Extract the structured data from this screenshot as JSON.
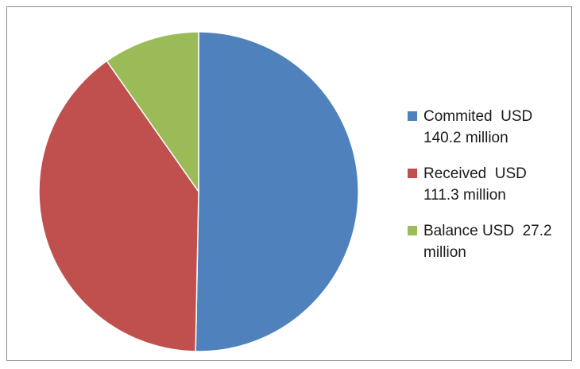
{
  "chart_data": {
    "type": "pie",
    "slices": [
      {
        "label_lines": [
          "Commited  USD",
          "140.2 million"
        ],
        "value": 140.2,
        "color": "#4f81bd"
      },
      {
        "label_lines": [
          "Received  USD",
          "111.3 million"
        ],
        "value": 111.3,
        "color": "#c0504d"
      },
      {
        "label_lines": [
          "Balance USD  27.2",
          "million"
        ],
        "value": 27.2,
        "color": "#9bbb59"
      }
    ],
    "start_angle_deg": 0,
    "direction": "clockwise",
    "legend_position": "right"
  }
}
